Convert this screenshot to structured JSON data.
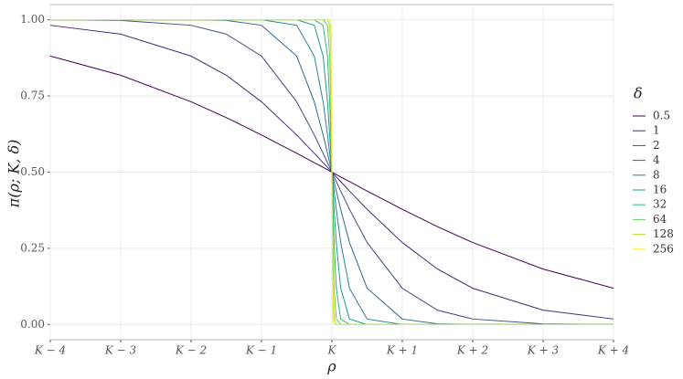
{
  "chart_data": {
    "type": "line",
    "x_label": "ρ",
    "y_label": "π(ρ; K, δ)",
    "legend_title": "δ",
    "x": [
      -4,
      -3,
      -2,
      -1.5,
      -1,
      -0.5,
      -0.25,
      -0.125,
      -0.0625,
      -0.03125,
      -0.015625,
      0,
      0.015625,
      0.03125,
      0.0625,
      0.125,
      0.25,
      0.5,
      1,
      1.5,
      2,
      3,
      4
    ],
    "series": [
      {
        "name": "0.5",
        "color": "#440154",
        "values": [
          0.881,
          0.818,
          0.731,
          0.679,
          0.622,
          0.562,
          0.531,
          0.516,
          0.508,
          0.504,
          0.502,
          0.5,
          0.498,
          0.496,
          0.492,
          0.484,
          0.469,
          0.438,
          0.378,
          0.321,
          0.269,
          0.182,
          0.119
        ]
      },
      {
        "name": "1",
        "color": "#482878",
        "values": [
          0.982,
          0.953,
          0.881,
          0.818,
          0.731,
          0.622,
          0.562,
          0.531,
          0.516,
          0.508,
          0.504,
          0.5,
          0.496,
          0.492,
          0.484,
          0.469,
          0.438,
          0.378,
          0.269,
          0.182,
          0.119,
          0.047,
          0.018
        ]
      },
      {
        "name": "2",
        "color": "#3E4A89",
        "values": [
          1,
          0.998,
          0.982,
          0.953,
          0.881,
          0.731,
          0.622,
          0.562,
          0.531,
          0.516,
          0.508,
          0.5,
          0.492,
          0.484,
          0.469,
          0.438,
          0.378,
          0.269,
          0.119,
          0.047,
          0.018,
          0.002,
          0
        ]
      },
      {
        "name": "4",
        "color": "#31688E",
        "values": [
          1,
          1,
          1,
          0.998,
          0.982,
          0.881,
          0.731,
          0.622,
          0.562,
          0.531,
          0.516,
          0.5,
          0.484,
          0.469,
          0.438,
          0.378,
          0.269,
          0.119,
          0.018,
          0.002,
          0,
          0,
          0
        ]
      },
      {
        "name": "8",
        "color": "#26828E",
        "values": [
          1,
          1,
          1,
          1,
          1,
          0.982,
          0.881,
          0.731,
          0.622,
          0.562,
          0.531,
          0.5,
          0.469,
          0.438,
          0.378,
          0.269,
          0.119,
          0.018,
          0,
          0,
          0,
          0,
          0
        ]
      },
      {
        "name": "16",
        "color": "#1F9E89",
        "values": [
          1,
          1,
          1,
          1,
          1,
          1,
          0.982,
          0.881,
          0.731,
          0.622,
          0.562,
          0.5,
          0.438,
          0.378,
          0.269,
          0.119,
          0.018,
          0,
          0,
          0,
          0,
          0,
          0
        ]
      },
      {
        "name": "32",
        "color": "#35B779",
        "values": [
          1,
          1,
          1,
          1,
          1,
          1,
          1,
          0.982,
          0.881,
          0.731,
          0.622,
          0.5,
          0.378,
          0.269,
          0.119,
          0.018,
          0,
          0,
          0,
          0,
          0,
          0,
          0
        ]
      },
      {
        "name": "64",
        "color": "#6DCD59",
        "values": [
          1,
          1,
          1,
          1,
          1,
          1,
          1,
          1,
          0.982,
          0.881,
          0.731,
          0.5,
          0.269,
          0.119,
          0.018,
          0,
          0,
          0,
          0,
          0,
          0,
          0,
          0
        ]
      },
      {
        "name": "128",
        "color": "#B4DE2C",
        "values": [
          1,
          1,
          1,
          1,
          1,
          1,
          1,
          1,
          1,
          0.982,
          0.881,
          0.5,
          0.119,
          0.018,
          0,
          0,
          0,
          0,
          0,
          0,
          0,
          0,
          0
        ]
      },
      {
        "name": "256",
        "color": "#FDE725",
        "values": [
          1,
          1,
          1,
          1,
          1,
          1,
          1,
          1,
          1,
          1,
          0.982,
          0.5,
          0.018,
          0,
          0,
          0,
          0,
          0,
          0,
          0,
          0,
          0,
          0
        ]
      }
    ],
    "xlim": [
      -4,
      4
    ],
    "xticks": [
      {
        "value": -4,
        "label": "K − 4"
      },
      {
        "value": -3,
        "label": "K − 3"
      },
      {
        "value": -2,
        "label": "K − 2"
      },
      {
        "value": -1,
        "label": "K − 1"
      },
      {
        "value": 0,
        "label": "K"
      },
      {
        "value": 1,
        "label": "K + 1"
      },
      {
        "value": 2,
        "label": "K + 2"
      },
      {
        "value": 3,
        "label": "K + 3"
      },
      {
        "value": 4,
        "label": "K + 4"
      }
    ],
    "ylim": [
      -0.05,
      1.05
    ],
    "yticks": [
      {
        "value": 0,
        "label": "0.00"
      },
      {
        "value": 0.25,
        "label": "0.25"
      },
      {
        "value": 0.5,
        "label": "0.50"
      },
      {
        "value": 0.75,
        "label": "0.75"
      },
      {
        "value": 1,
        "label": "1.00"
      }
    ],
    "grid": true
  }
}
